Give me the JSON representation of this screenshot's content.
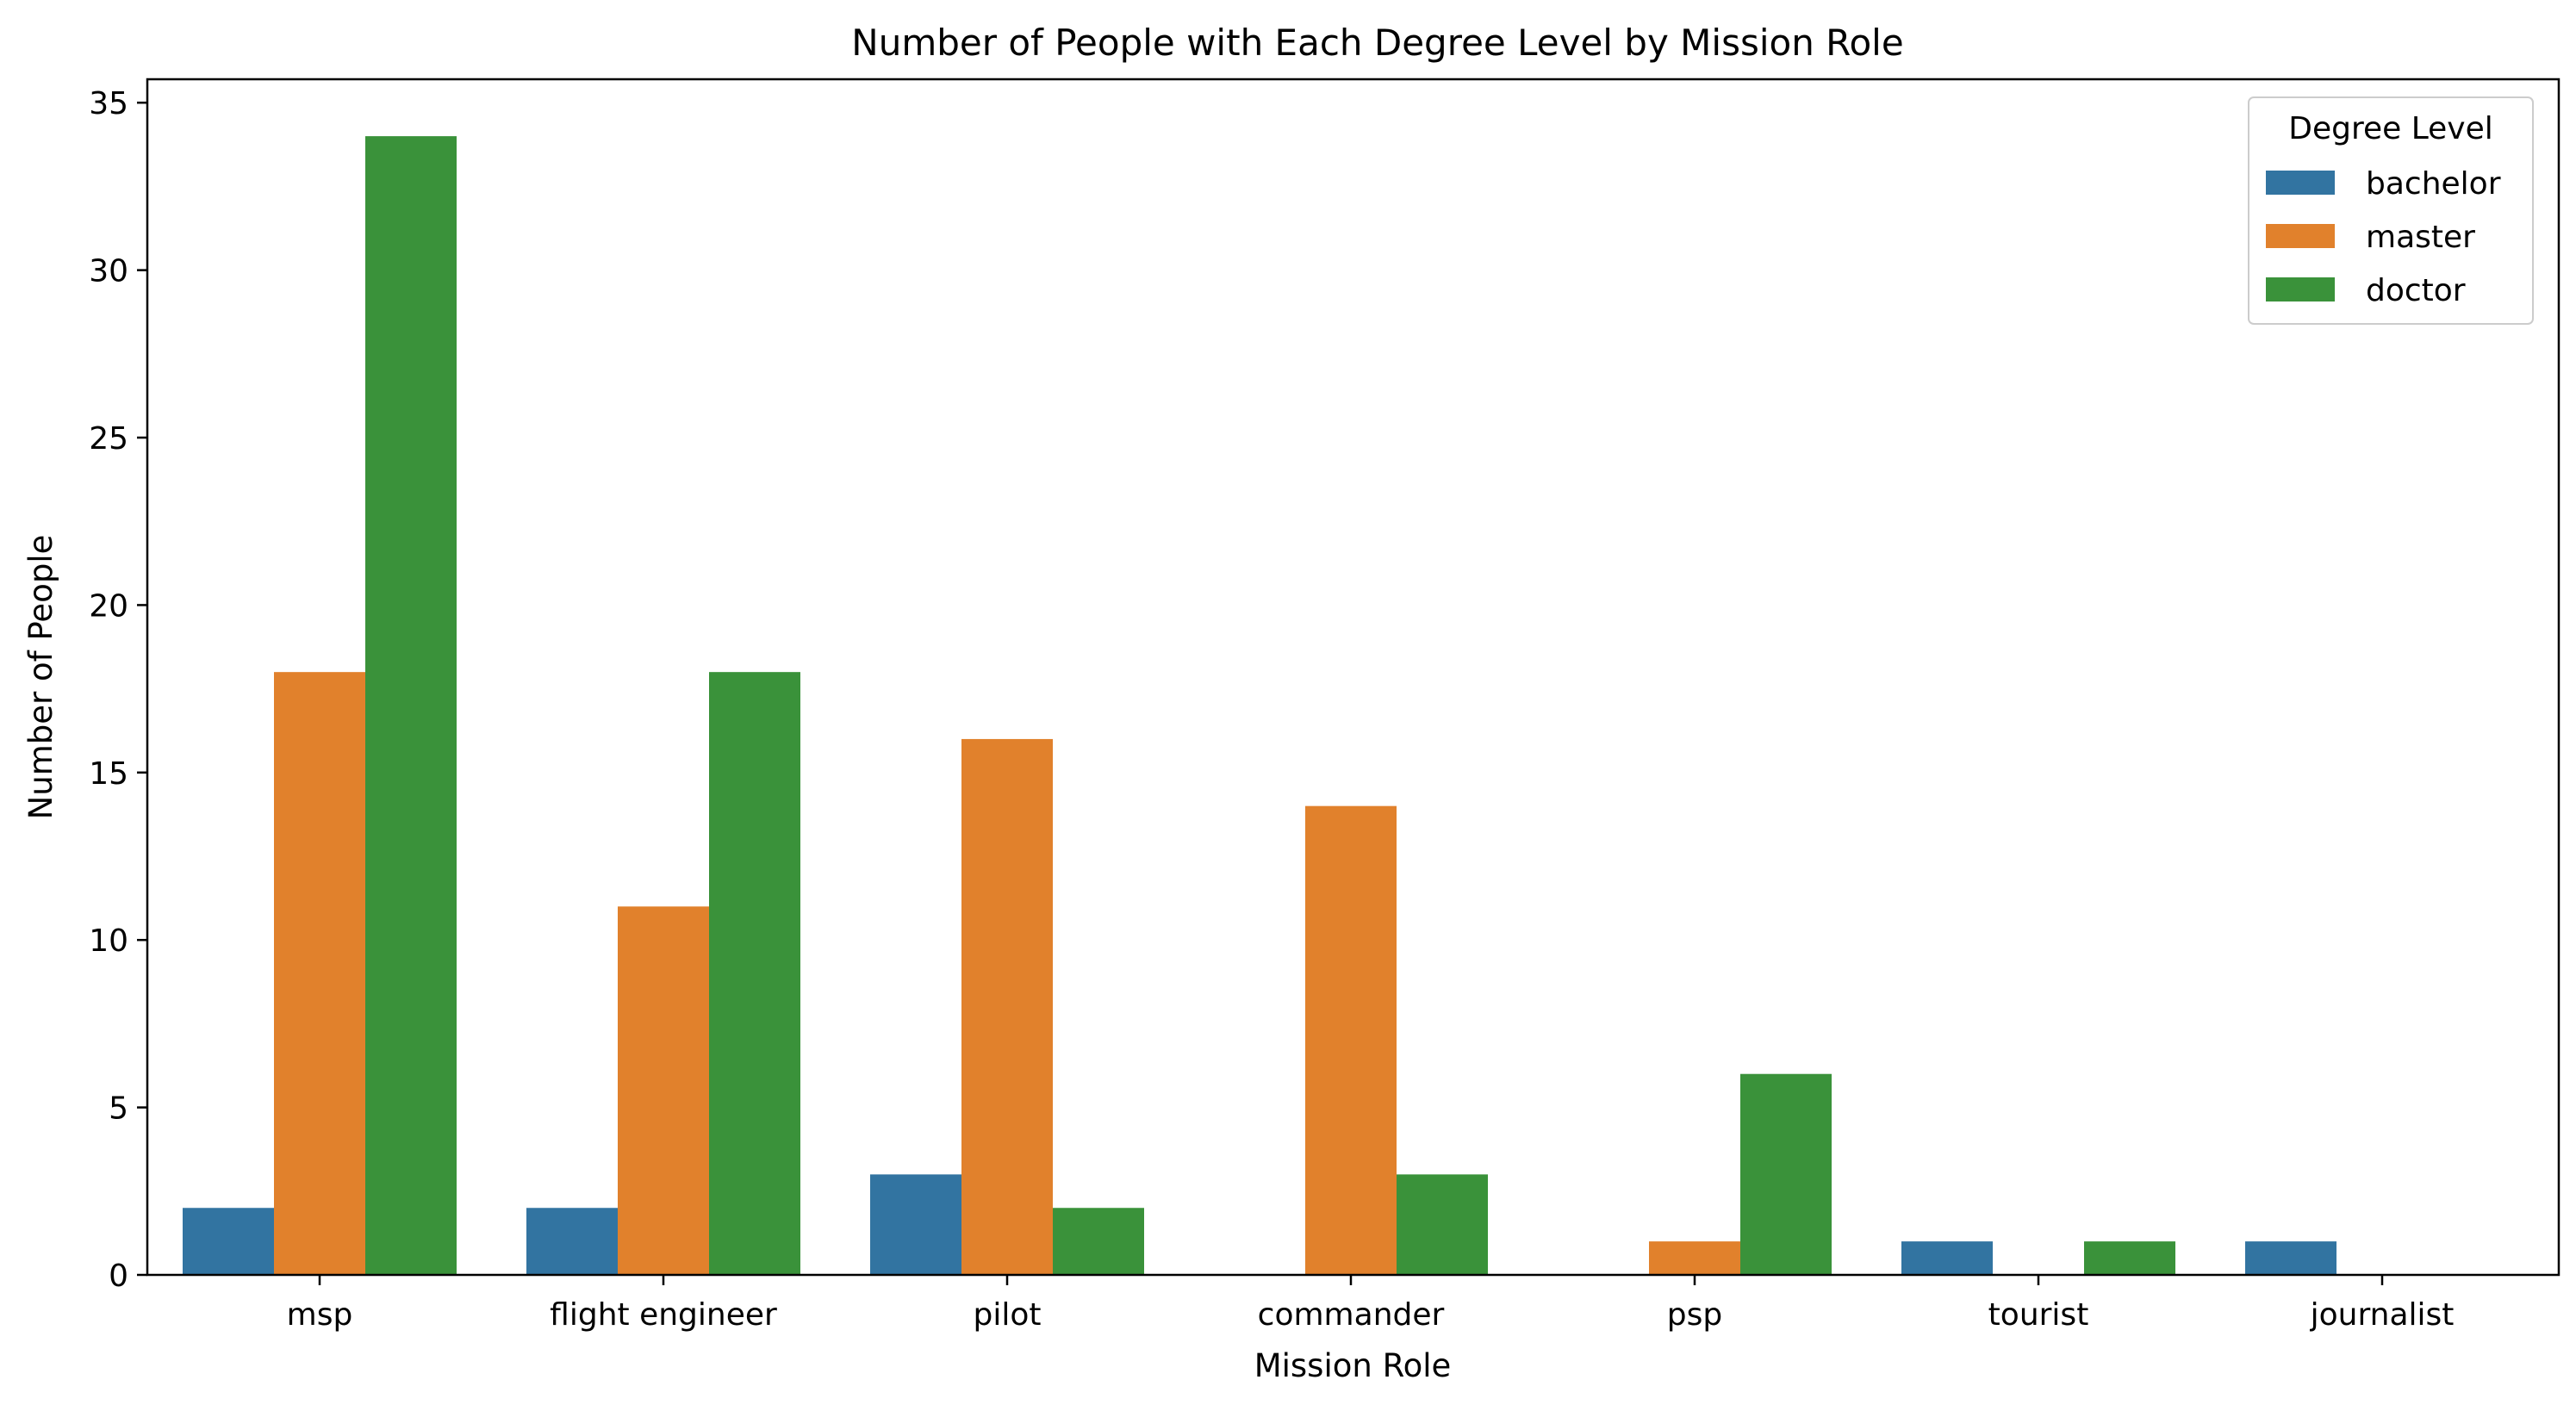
{
  "chart_data": {
    "type": "bar",
    "title": "Number of People with Each Degree Level by Mission Role",
    "xlabel": "Mission Role",
    "ylabel": "Number of People",
    "categories": [
      "msp",
      "flight engineer",
      "pilot",
      "commander",
      "psp",
      "tourist",
      "journalist"
    ],
    "series": [
      {
        "name": "bachelor",
        "color": "#3274a1",
        "values": [
          2,
          2,
          3,
          0,
          0,
          1,
          1
        ]
      },
      {
        "name": "master",
        "color": "#e1812c",
        "values": [
          18,
          11,
          16,
          14,
          1,
          0,
          0
        ]
      },
      {
        "name": "doctor",
        "color": "#3a923a",
        "values": [
          34,
          18,
          2,
          3,
          6,
          1,
          0
        ]
      }
    ],
    "ylim": [
      0,
      35.7
    ],
    "yticks": [
      0,
      5,
      10,
      15,
      20,
      25,
      30,
      35
    ],
    "grid": false,
    "legend": {
      "title": "Degree Level",
      "position": "top-right"
    }
  }
}
